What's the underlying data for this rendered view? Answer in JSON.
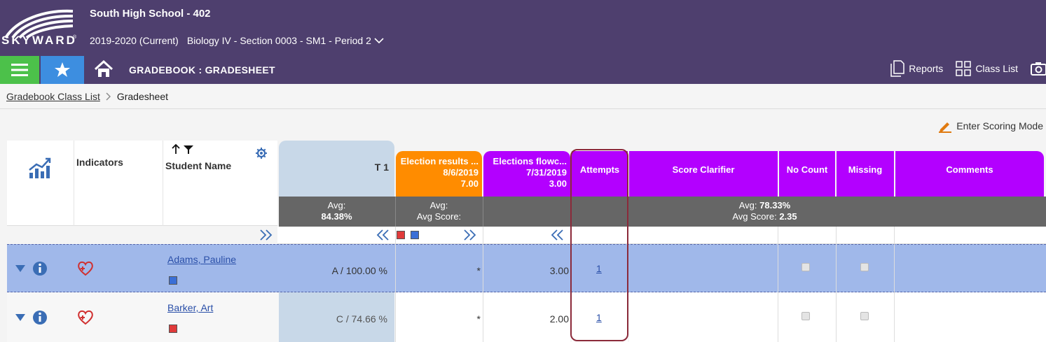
{
  "header": {
    "logo_text": "SKYWARD",
    "school": "South High School - 402",
    "year": "2019-2020 (Current)",
    "class": "Biology IV - Section 0003 - SM1 - Period 2"
  },
  "nav": {
    "title": "GRADEBOOK : GRADESHEET",
    "reports": "Reports",
    "class_list": "Class List"
  },
  "breadcrumb": {
    "link": "Gradebook Class List",
    "current": "Gradesheet"
  },
  "toolbar": {
    "scoring_mode": "Enter Scoring Mode"
  },
  "columns": {
    "indicators": "Indicators",
    "student_name": "Student Name",
    "t1": "T 1",
    "t1_avg_label": "Avg:",
    "t1_avg": "84.38%",
    "assign1_title": "Election results ...",
    "assign1_date": "8/6/2019",
    "assign1_points": "7.00",
    "assign1_avg_label": "Avg:",
    "assign1_avg_score_label": "Avg Score:",
    "assign2_title": "Elections flowc...",
    "assign2_date": "7/31/2019",
    "assign2_points": "3.00",
    "attempts": "Attempts",
    "score_clarifier": "Score Clarifier",
    "no_count": "No Count",
    "missing": "Missing",
    "comments": "Comments",
    "avg_label": "Avg: ",
    "avg_value": "78.33%",
    "avg_score_label": "Avg Score: ",
    "avg_score_value": "2.35"
  },
  "students": [
    {
      "name": "Adams, Pauline",
      "t1": "A / 100.00 %",
      "assign1": "*",
      "assign2": "3.00",
      "attempts": "1",
      "color": "#3b6fd6"
    },
    {
      "name": "Barker, Art",
      "t1": "C / 74.66 %",
      "assign1": "*",
      "assign2": "2.00",
      "attempts": "1",
      "color": "#e03a3a"
    }
  ],
  "colors": {
    "header": "#4e3f6e",
    "assign1": "#ff8c00",
    "assign_purple": "#b300ff",
    "t1_bg": "#c8d8e8",
    "selected_row": "#a0b8ea"
  }
}
